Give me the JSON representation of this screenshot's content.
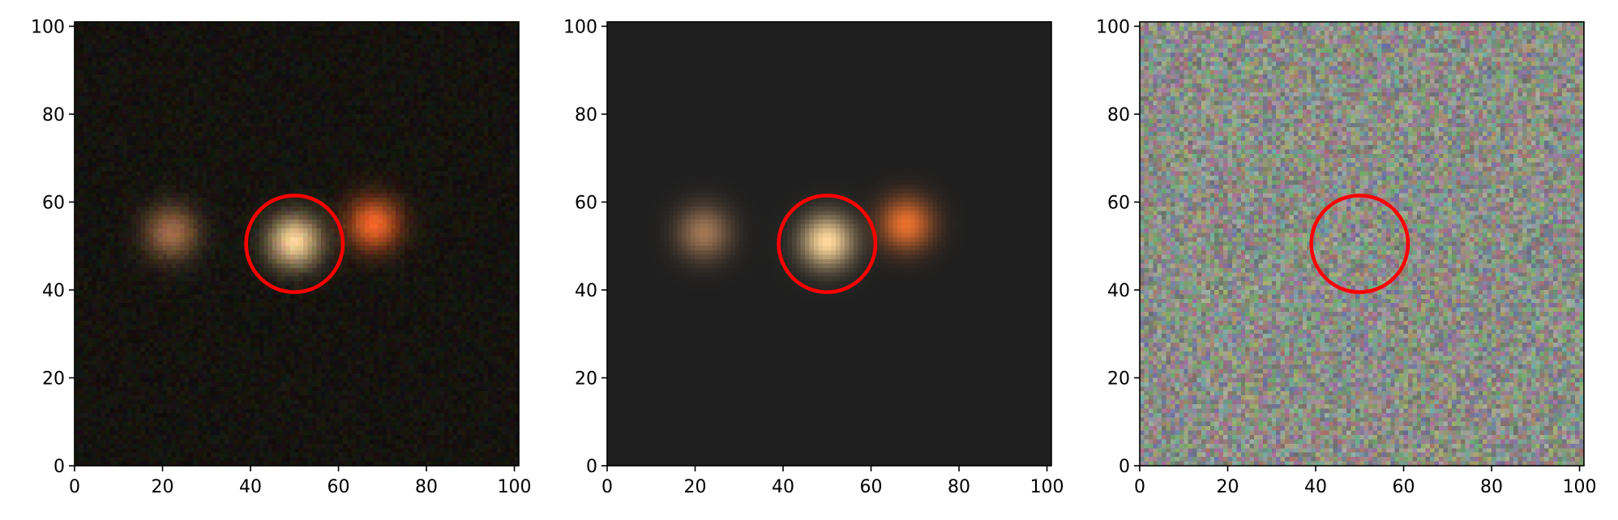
{
  "figure": {
    "panels": [
      {
        "name": "observed-image",
        "xlim": [
          0,
          101
        ],
        "ylim": [
          0,
          101
        ],
        "xticks": [
          0,
          20,
          40,
          60,
          80,
          100
        ],
        "yticks": [
          0,
          20,
          40,
          60,
          80,
          100
        ],
        "background": "#15130f",
        "noise_level": 0.55,
        "sources": [
          {
            "x": 22,
            "y": 53,
            "color": "#d08c5c",
            "strength": 0.75
          },
          {
            "x": 50,
            "y": 51,
            "color": "#ffd69a",
            "strength": 1.0
          },
          {
            "x": 68,
            "y": 55,
            "color": "#ff6a2a",
            "strength": 0.95
          }
        ],
        "marker": {
          "x": 50,
          "y": 50.5,
          "radius": 11,
          "color": "#ff0000"
        }
      },
      {
        "name": "model-image",
        "xlim": [
          0,
          101
        ],
        "ylim": [
          0,
          101
        ],
        "xticks": [
          0,
          20,
          40,
          60,
          80,
          100
        ],
        "yticks": [
          0,
          20,
          40,
          60,
          80,
          100
        ],
        "background": "#1f1f1f",
        "noise_level": 0.0,
        "sources": [
          {
            "x": 22,
            "y": 53,
            "color": "#d89c6c",
            "strength": 0.7
          },
          {
            "x": 50,
            "y": 51,
            "color": "#ffd99c",
            "strength": 1.0
          },
          {
            "x": 68,
            "y": 55,
            "color": "#ff7a30",
            "strength": 0.9
          }
        ],
        "marker": {
          "x": 50,
          "y": 50.5,
          "radius": 11,
          "color": "#ff0000"
        }
      },
      {
        "name": "residual-image",
        "xlim": [
          0,
          101
        ],
        "ylim": [
          0,
          101
        ],
        "xticks": [
          0,
          20,
          40,
          60,
          80,
          100
        ],
        "yticks": [
          0,
          20,
          40,
          60,
          80,
          100
        ],
        "background": "#8a8e86",
        "noise_level": 1.0,
        "sources": [],
        "marker": {
          "x": 50,
          "y": 50.5,
          "radius": 11,
          "color": "#ff0000"
        }
      }
    ]
  }
}
